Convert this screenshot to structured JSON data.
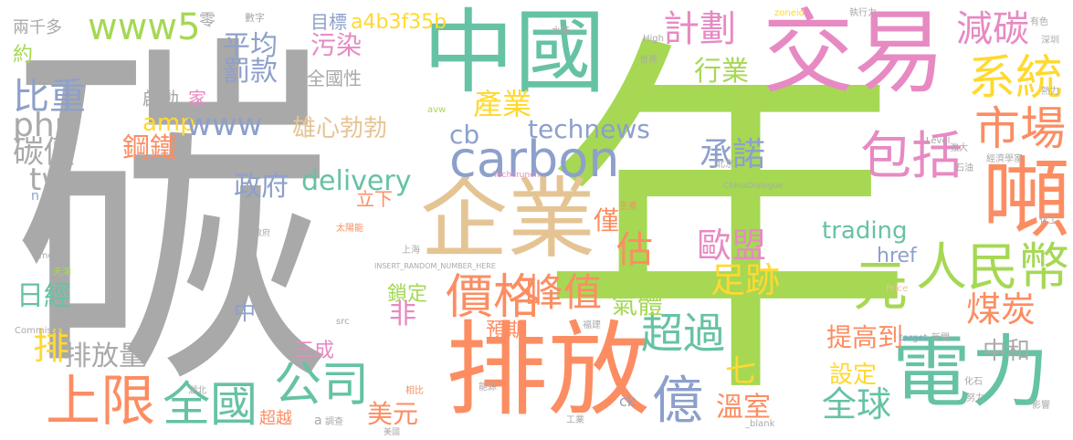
{
  "palette": {
    "gray": "#a9a9a9",
    "green": "#a6d854",
    "orange": "#fc8d62",
    "teal": "#66c2a5",
    "pink": "#e78ac3",
    "blue": "#8da0cb",
    "tan": "#e5c494",
    "yellow": "#ffd92f"
  },
  "words": [
    "碳",
    "年",
    "中國",
    "交易",
    "排放",
    "電力",
    "企業",
    "carbon",
    "價格",
    "人民幣",
    "元",
    "市場",
    "噸",
    "包括",
    "系統",
    "減碳",
    "計劃",
    "上限",
    "全國",
    "公司",
    "億",
    "超過",
    "峰值",
    "歐盟",
    "足跡",
    "承諾",
    "煤炭",
    "全球",
    "www5",
    "比重",
    "technews",
    "cb",
    "php",
    "tw",
    "碳價",
    "鋼鐵",
    "amp",
    "www",
    "雄心勃勃",
    "產業",
    "平均",
    "罰款",
    "污染",
    "a4b3f35b",
    "目標",
    "行業",
    "delivery",
    "政府",
    "trading",
    "日經",
    "排",
    "排放量",
    "美元",
    "溫室",
    "提高到",
    "設定",
    "中和",
    "七",
    "估",
    "僅",
    "氣體",
    "href",
    "鎖定",
    "預期",
    "三成",
    "非",
    "中",
    "立下",
    "全國性",
    "啟動",
    "家",
    "約",
    "兩千多",
    "零",
    "數字",
    "生產",
    "相比",
    "Techcrunch",
    "INSERT_RANDOM_NUMBER_HERE",
    "ChinaDialogue",
    "Commission",
    "_blank",
    "zoneid",
    "High",
    "Level",
    "Price",
    "target",
    "src",
    "img",
    "avw",
    "ck",
    "a",
    "n",
    "太陽能",
    "地方政府",
    "北京",
    "上海",
    "天津",
    "湖北",
    "福建",
    "經濟學家",
    "石油",
    "化石",
    "化工",
    "能源",
    "水準",
    "世界",
    "新聞",
    "強大",
    "執行力",
    "有色",
    "深圳",
    "熱力",
    "調查",
    "美國",
    "努力",
    "影響",
    "超越",
    "工業"
  ]
}
